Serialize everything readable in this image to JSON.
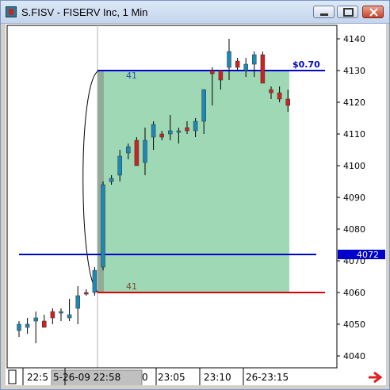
{
  "window": {
    "title": "S.FISV - FISERV Inc, 1 Min",
    "minimize_icon": "minimize-icon",
    "maximize_icon": "maximize-icon",
    "close_icon": "close-icon"
  },
  "chart_data": {
    "type": "candlestick",
    "symbol": "S.FISV",
    "ylim": [
      4035,
      4150
    ],
    "price_ticks": [
      4040,
      4050,
      4060,
      4070,
      4080,
      4090,
      4100,
      4110,
      4120,
      4130,
      4140
    ],
    "current_price_label": "4072",
    "time_labels": [
      "22:5",
      "5-26-09 22:58",
      "0",
      "23:05",
      "23:10",
      "26-23:15"
    ],
    "upper_level": {
      "price": 4130,
      "label": "41"
    },
    "lower_level": {
      "price": 4060,
      "label": "41"
    },
    "mid_level": {
      "price": 4072
    },
    "gain_label": "$0.70",
    "candles": [
      {
        "o": 4048,
        "h": 4051,
        "l": 4046,
        "c": 4050,
        "up": true
      },
      {
        "o": 4049,
        "h": 4052,
        "l": 4047,
        "c": 4050,
        "up": true
      },
      {
        "o": 4051,
        "h": 4054,
        "l": 4044,
        "c": 4052,
        "up": true
      },
      {
        "o": 4051,
        "h": 4053,
        "l": 4049,
        "c": 4049,
        "up": false
      },
      {
        "o": 4052,
        "h": 4055,
        "l": 4050,
        "c": 4054,
        "up": false
      },
      {
        "o": 4054,
        "h": 4055,
        "l": 4051,
        "c": 4054,
        "up": true
      },
      {
        "o": 4052,
        "h": 4058,
        "l": 4051,
        "c": 4053,
        "up": true
      },
      {
        "o": 4055,
        "h": 4062,
        "l": 4050,
        "c": 4059,
        "up": true
      },
      {
        "o": 4060,
        "h": 4061,
        "l": 4059,
        "c": 4060,
        "up": false
      },
      {
        "o": 4060,
        "h": 4068,
        "l": 4059,
        "c": 4067,
        "up": true
      },
      {
        "o": 4068,
        "h": 4095,
        "l": 4067,
        "c": 4094,
        "up": true
      },
      {
        "o": 4095,
        "h": 4097,
        "l": 4094,
        "c": 4096,
        "up": true
      },
      {
        "o": 4097,
        "h": 4105,
        "l": 4095,
        "c": 4103,
        "up": true
      },
      {
        "o": 4104,
        "h": 4107,
        "l": 4102,
        "c": 4106,
        "up": true
      },
      {
        "o": 4108,
        "h": 4109,
        "l": 4100,
        "c": 4100,
        "up": false
      },
      {
        "o": 4101,
        "h": 4112,
        "l": 4097,
        "c": 4108,
        "up": true
      },
      {
        "o": 4109,
        "h": 4114,
        "l": 4105,
        "c": 4113,
        "up": true
      },
      {
        "o": 4110,
        "h": 4111,
        "l": 4108,
        "c": 4109,
        "up": false
      },
      {
        "o": 4110,
        "h": 4116,
        "l": 4108,
        "c": 4111,
        "up": true
      },
      {
        "o": 4111,
        "h": 4112,
        "l": 4107,
        "c": 4111,
        "up": true
      },
      {
        "o": 4112,
        "h": 4114,
        "l": 4110,
        "c": 4111,
        "up": false
      },
      {
        "o": 4111,
        "h": 4115,
        "l": 4109,
        "c": 4114,
        "up": true
      },
      {
        "o": 4114,
        "h": 4124,
        "l": 4110,
        "c": 4124,
        "up": true
      },
      {
        "o": 4129,
        "h": 4131,
        "l": 4119,
        "c": 4130,
        "up": false
      },
      {
        "o": 4127,
        "h": 4130,
        "l": 4124,
        "c": 4130,
        "up": false
      },
      {
        "o": 4131,
        "h": 4140,
        "l": 4127,
        "c": 4136,
        "up": true
      },
      {
        "o": 4133,
        "h": 4134,
        "l": 4130,
        "c": 4131,
        "up": false
      },
      {
        "o": 4130,
        "h": 4134,
        "l": 4128,
        "c": 4132,
        "up": true
      },
      {
        "o": 4132,
        "h": 4136,
        "l": 4128,
        "c": 4135,
        "up": true
      },
      {
        "o": 4135,
        "h": 4136,
        "l": 4126,
        "c": 4126,
        "up": false
      },
      {
        "o": 4124,
        "h": 4125,
        "l": 4121,
        "c": 4123,
        "up": false
      },
      {
        "o": 4123,
        "h": 4125,
        "l": 4120,
        "c": 4121,
        "up": false
      },
      {
        "o": 4121,
        "h": 4124,
        "l": 4117,
        "c": 4119,
        "up": false
      }
    ]
  },
  "colors": {
    "up": "#1e88b4",
    "down": "#cc2222",
    "box_fill": "#9fd8b4",
    "upper_line": "#0000cc",
    "lower_line": "#dd0000",
    "price_tag_bg": "#0000cc"
  },
  "nav": {
    "arrow_icon": "right-arrow-icon"
  }
}
